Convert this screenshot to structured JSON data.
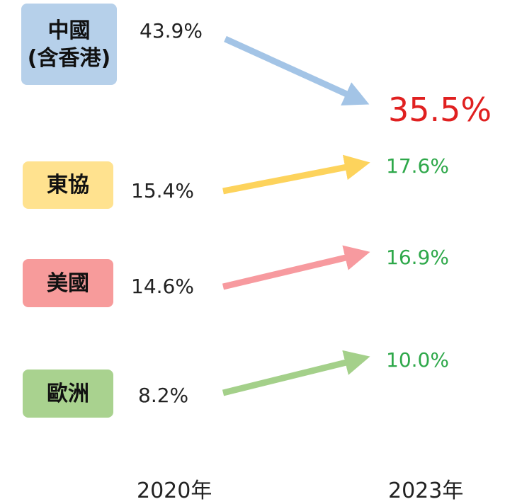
{
  "regions": [
    {
      "label_lines": [
        "中國",
        "(含香港)"
      ],
      "value_2020": "43.9%",
      "value_2023": "35.5%"
    },
    {
      "label_lines": [
        "東協"
      ],
      "value_2020": "15.4%",
      "value_2023": "17.6%"
    },
    {
      "label_lines": [
        "美國"
      ],
      "value_2020": "14.6%",
      "value_2023": "16.9%"
    },
    {
      "label_lines": [
        "歐洲"
      ],
      "value_2020": "8.2%",
      "value_2023": "10.0%"
    }
  ],
  "years": [
    "2020年",
    "2023年"
  ]
}
